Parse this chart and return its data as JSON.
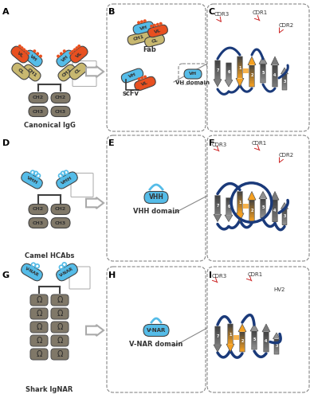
{
  "background": "#ffffff",
  "colors": {
    "vl": "#e85020",
    "vh": "#55bce8",
    "ch1": "#c8b870",
    "cl": "#c8b870",
    "ch2": "#807868",
    "ch3": "#807868",
    "vhh": "#55bce8",
    "vnar": "#55bce8",
    "beta_orange": "#f5a020",
    "beta_dark": "#404040",
    "loop_blue": "#1a3a7a",
    "cdr_red": "#cc2222",
    "hinge": "#404040",
    "shark_domain": "#807868"
  },
  "panel_labels": [
    [
      "A",
      2,
      2
    ],
    [
      "B",
      135,
      2
    ],
    [
      "C",
      261,
      2
    ],
    [
      "D",
      2,
      167
    ],
    [
      "E",
      135,
      167
    ],
    [
      "F",
      261,
      167
    ],
    [
      "G",
      2,
      333
    ],
    [
      "H",
      135,
      333
    ],
    [
      "I",
      261,
      333
    ]
  ],
  "row_titles": [
    [
      "Canonical IgG",
      65,
      158
    ],
    [
      "Camel HCAbs",
      65,
      323
    ],
    [
      "Shark IgNAR",
      65,
      490
    ]
  ],
  "middle_labels": [
    [
      "VHH domain",
      196,
      265
    ],
    [
      "V-NAR domain",
      196,
      432
    ]
  ]
}
